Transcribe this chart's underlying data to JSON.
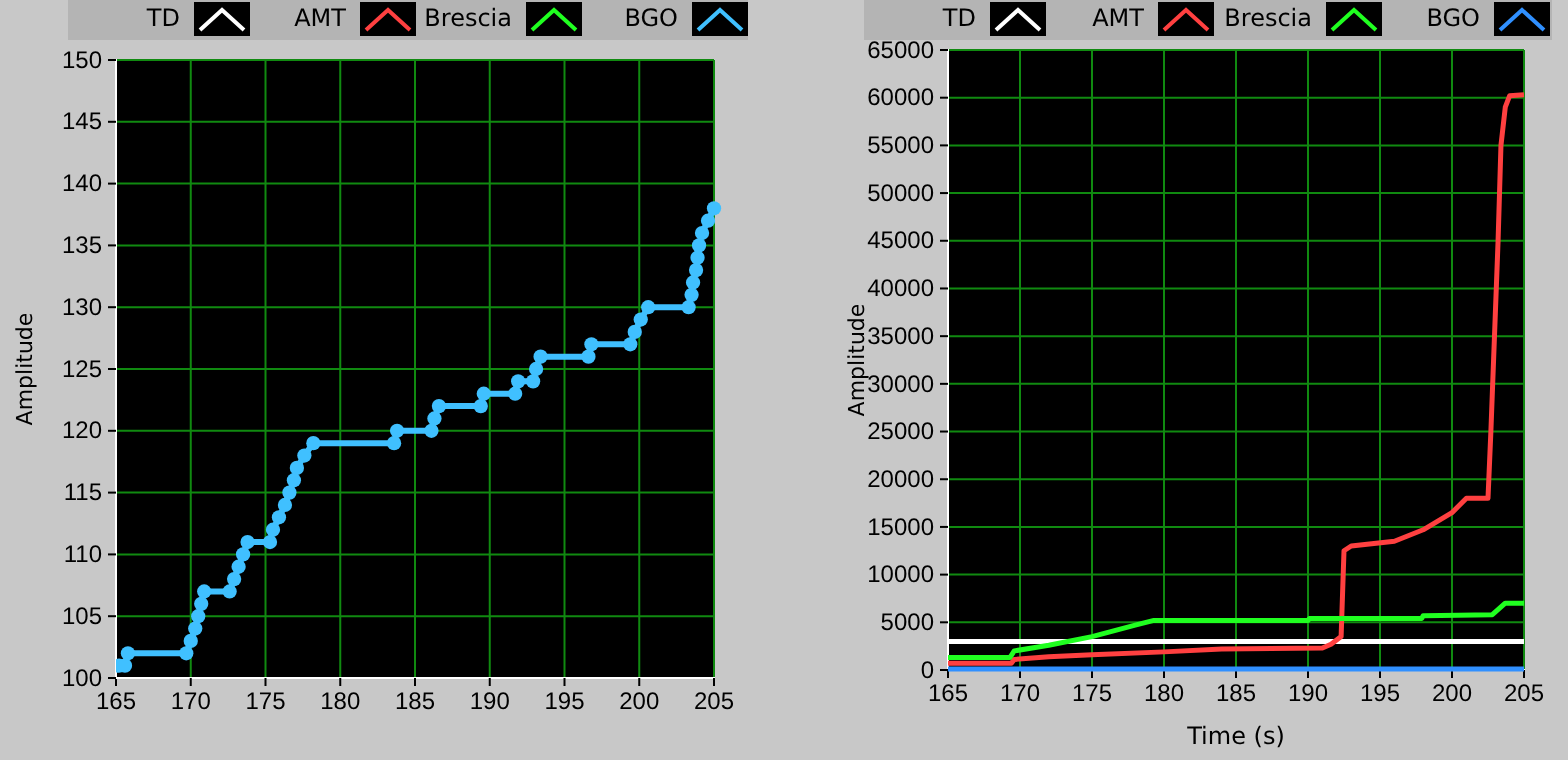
{
  "chart_data": [
    {
      "type": "line",
      "ylabel": "Amplitude",
      "xlim": [
        165,
        205
      ],
      "xticks": [
        165,
        170,
        175,
        180,
        185,
        190,
        195,
        200,
        205
      ],
      "ylim": [
        100,
        150
      ],
      "yticks": [
        100,
        105,
        110,
        115,
        120,
        125,
        130,
        135,
        140,
        145,
        150
      ],
      "grid": true,
      "legend": "top",
      "marker": "circle",
      "series": [
        {
          "name": "TD",
          "color": "#ffffff"
        },
        {
          "name": "AMT",
          "color": "#ff4040"
        },
        {
          "name": "Brescia",
          "color": "#20ff20"
        },
        {
          "name": "BGO",
          "color": "#40c0ff",
          "x": [
            165.2,
            165.6,
            165.8,
            169.7,
            170,
            170.3,
            170.5,
            170.7,
            170.9,
            172.6,
            172.9,
            173.2,
            173.5,
            173.8,
            175.3,
            175.5,
            175.9,
            176.3,
            176.6,
            176.9,
            177.1,
            177.6,
            178.2,
            183.6,
            183.8,
            186.1,
            186.3,
            186.6,
            189.4,
            189.6,
            191.7,
            191.9,
            192.9,
            193.1,
            193.4,
            196.6,
            196.8,
            199.4,
            199.7,
            200.1,
            200.6,
            203.3,
            203.5,
            203.6,
            203.8,
            203.9,
            204,
            204.2,
            204.6,
            205
          ],
          "values": [
            101,
            101,
            102,
            102,
            103,
            104,
            105,
            106,
            107,
            107,
            108,
            109,
            110,
            111,
            111,
            112,
            113,
            114,
            115,
            116,
            117,
            118,
            119,
            119,
            120,
            120,
            121,
            122,
            122,
            123,
            123,
            124,
            124,
            125,
            126,
            126,
            127,
            127,
            128,
            129,
            130,
            130,
            131,
            132,
            133,
            134,
            135,
            136,
            137,
            138
          ]
        }
      ]
    },
    {
      "type": "line",
      "xlabel": "Time (s)",
      "ylabel": "Amplitude",
      "xlim": [
        165,
        205
      ],
      "xticks": [
        165,
        170,
        175,
        180,
        185,
        190,
        195,
        200,
        205
      ],
      "ylim": [
        0,
        65000
      ],
      "yticks": [
        0,
        5000,
        10000,
        15000,
        20000,
        25000,
        30000,
        35000,
        40000,
        45000,
        50000,
        55000,
        60000,
        65000
      ],
      "grid": true,
      "legend": "top",
      "series": [
        {
          "name": "TD",
          "color": "#ffffff",
          "x": [
            165,
            205
          ],
          "values": [
            3000,
            3000
          ]
        },
        {
          "name": "AMT",
          "color": "#ff4040",
          "x": [
            165,
            169.4,
            169.6,
            172,
            175,
            180,
            184,
            191,
            191.6,
            192.3,
            192.5,
            193,
            196,
            198,
            200,
            201,
            202.5,
            202.7,
            203.2,
            203.4,
            203.7,
            204,
            205
          ],
          "values": [
            700,
            700,
            1100,
            1400,
            1600,
            1900,
            2200,
            2300,
            2700,
            3500,
            12500,
            13000,
            13500,
            14700,
            16500,
            18000,
            18000,
            25000,
            45000,
            55000,
            59000,
            60200,
            60300
          ]
        },
        {
          "name": "Brescia",
          "color": "#20ff20",
          "x": [
            165,
            169.3,
            169.6,
            172,
            175,
            178,
            179.3,
            190,
            190.1,
            197.9,
            198,
            202.8,
            203.7,
            205
          ],
          "values": [
            1300,
            1300,
            2000,
            2600,
            3500,
            4700,
            5200,
            5200,
            5400,
            5400,
            5700,
            5800,
            7000,
            7000
          ]
        },
        {
          "name": "BGO",
          "color": "#3090ff",
          "x": [
            165,
            205
          ],
          "values": [
            100,
            100
          ]
        }
      ]
    }
  ]
}
